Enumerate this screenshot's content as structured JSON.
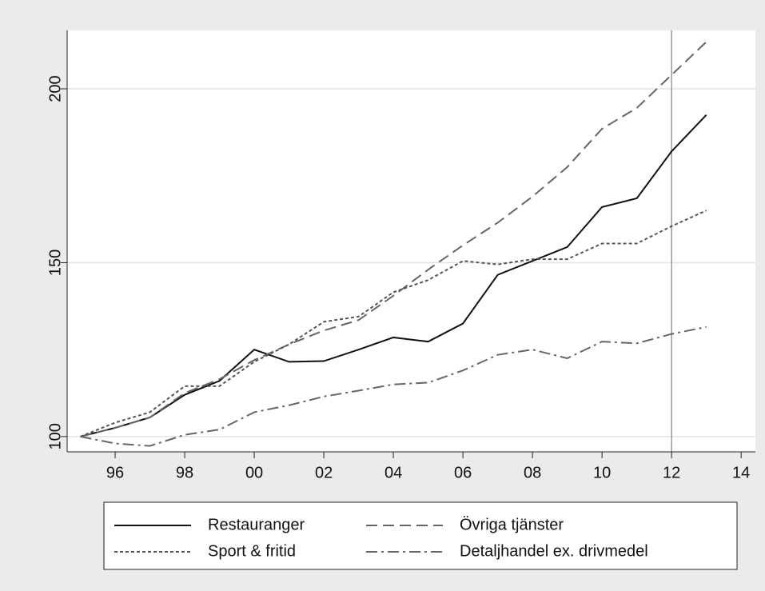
{
  "chart_data": {
    "type": "line",
    "x": [
      1995,
      1996,
      1997,
      1998,
      1999,
      2000,
      2001,
      2002,
      2003,
      2004,
      2005,
      2006,
      2007,
      2008,
      2009,
      2010,
      2011,
      2012,
      2013
    ],
    "series": [
      {
        "name": "Restauranger",
        "color": "#111111",
        "dash": "none",
        "values": [
          100,
          102.5,
          105.5,
          112,
          116,
          125,
          121.5,
          121.7,
          125,
          128.5,
          127.3,
          132.5,
          146.5,
          150.5,
          154.5,
          166,
          168.5,
          182,
          192.5
        ]
      },
      {
        "name": "Övriga tjänster",
        "color": "#666666",
        "dash": "14,7",
        "values": [
          100,
          102.5,
          105.5,
          112.5,
          116.5,
          122,
          126.5,
          130.5,
          133.5,
          140.5,
          148,
          155,
          161.5,
          169,
          177.5,
          188.5,
          194.5,
          204,
          213.5
        ]
      },
      {
        "name": "Sport & fritid",
        "color": "#555555",
        "dash": "4,3",
        "values": [
          100,
          104,
          107,
          114.5,
          114.5,
          121.5,
          126.5,
          133,
          134.5,
          141.5,
          145,
          150.5,
          149.5,
          151,
          151,
          155.5,
          155.5,
          160.5,
          165
        ]
      },
      {
        "name": "Detaljhandel ex. drivmedel",
        "color": "#666666",
        "dash": "14,5,3,5",
        "values": [
          100,
          98,
          97.3,
          100.5,
          102,
          107,
          109,
          111.5,
          113.2,
          115,
          115.5,
          119,
          123.5,
          125,
          122.5,
          127.3,
          126.8,
          129.5,
          131.5
        ]
      }
    ],
    "xlim": [
      1994.62,
      2014.41
    ],
    "xticks": [
      {
        "value": 1996,
        "label": "96"
      },
      {
        "value": 1998,
        "label": "98"
      },
      {
        "value": 2000,
        "label": "00"
      },
      {
        "value": 2002,
        "label": "02"
      },
      {
        "value": 2004,
        "label": "04"
      },
      {
        "value": 2006,
        "label": "06"
      },
      {
        "value": 2008,
        "label": "08"
      },
      {
        "value": 2010,
        "label": "10"
      },
      {
        "value": 2012,
        "label": "12"
      },
      {
        "value": 2014,
        "label": "14"
      }
    ],
    "ylim": [
      95.6,
      216.8
    ],
    "yticks": [
      100,
      150,
      200
    ],
    "grid": true,
    "reference_line_x": 2012,
    "legend": "bottom"
  }
}
